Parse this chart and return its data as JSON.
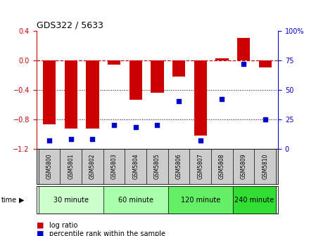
{
  "title": "GDS322 / 5633",
  "samples": [
    "GSM5800",
    "GSM5801",
    "GSM5802",
    "GSM5803",
    "GSM5804",
    "GSM5805",
    "GSM5806",
    "GSM5807",
    "GSM5808",
    "GSM5809",
    "GSM5810"
  ],
  "log_ratio": [
    -0.87,
    -0.93,
    -0.93,
    -0.06,
    -0.54,
    -0.44,
    -0.22,
    -1.02,
    0.03,
    0.3,
    -0.1
  ],
  "percentile": [
    7,
    8,
    8,
    20,
    18,
    20,
    40,
    7,
    42,
    72,
    25
  ],
  "groups": [
    {
      "label": "30 minute",
      "start": 0,
      "end": 3,
      "color": "#ccffcc"
    },
    {
      "label": "60 minute",
      "start": 3,
      "end": 6,
      "color": "#aaffaa"
    },
    {
      "label": "120 minute",
      "start": 6,
      "end": 9,
      "color": "#66ee66"
    },
    {
      "label": "240 minute",
      "start": 9,
      "end": 11,
      "color": "#33dd33"
    }
  ],
  "bar_color": "#cc0000",
  "dot_color": "#0000cc",
  "ylim_left": [
    -1.2,
    0.4
  ],
  "ylim_right": [
    0,
    100
  ],
  "yticks_left": [
    -1.2,
    -0.8,
    -0.4,
    0.0,
    0.4
  ],
  "yticks_right": [
    0,
    25,
    50,
    75,
    100
  ],
  "dotted_lines": [
    -0.4,
    -0.8
  ],
  "background_color": "#ffffff"
}
